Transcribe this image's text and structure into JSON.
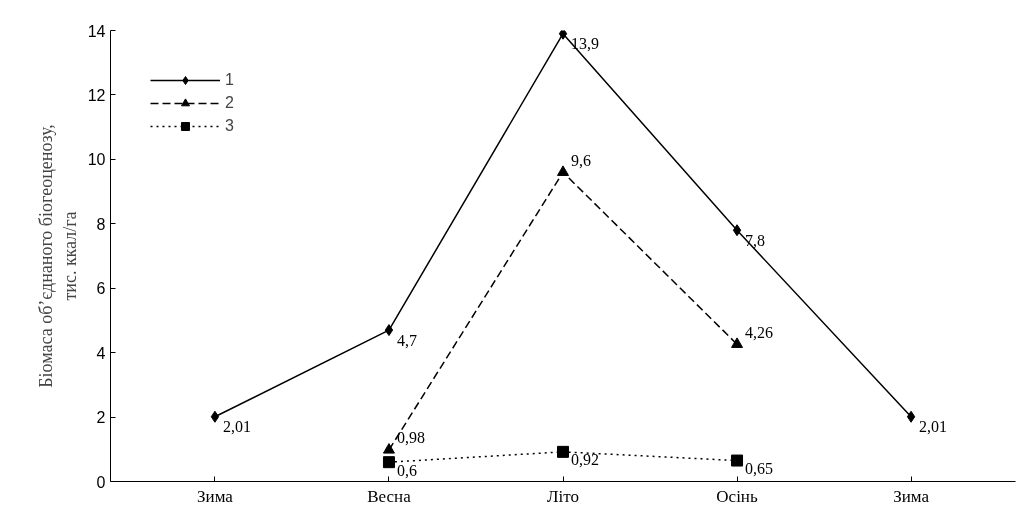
{
  "chart_data": {
    "type": "line",
    "categories": [
      "Зима",
      "Весна",
      "Літо",
      "Осінь",
      "Зима"
    ],
    "ylabel": "Біомаса об’єднаного біогеоценозу,\nтис. ккал/га",
    "ylim": [
      0,
      14
    ],
    "yticks": [
      0,
      2,
      4,
      6,
      8,
      10,
      12,
      14
    ],
    "grid": false,
    "legend": "top left",
    "series": [
      {
        "name": "1",
        "color": "#000000",
        "marker": "diamond",
        "line_style": "solid",
        "values": [
          2.01,
          4.7,
          13.9,
          7.8,
          2.01
        ],
        "value_labels": [
          "2,01",
          "4,7",
          "13,9",
          "7,8",
          "2,01"
        ]
      },
      {
        "name": "2",
        "color": "#000000",
        "marker": "triangle",
        "line_style": "dashed",
        "values": [
          null,
          0.98,
          9.6,
          4.26,
          null
        ],
        "value_labels": [
          null,
          "0,98",
          "9,6",
          "4,26",
          null
        ]
      },
      {
        "name": "3",
        "color": "#000000",
        "marker": "square",
        "line_style": "dotted",
        "values": [
          null,
          0.6,
          0.92,
          0.65,
          null
        ],
        "value_labels": [
          null,
          "0,6",
          "0,92",
          "0,65",
          null
        ]
      }
    ]
  }
}
